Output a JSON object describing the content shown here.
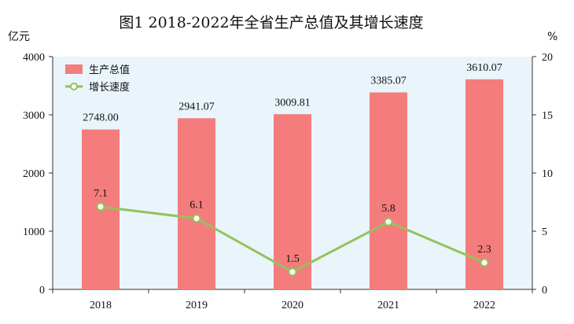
{
  "title": "图1  2018-2022年全省生产总值及其增长速度",
  "chart_data": {
    "type": "bar",
    "title": "图1  2018-2022年全省生产总值及其增长速度",
    "categories": [
      "2018",
      "2019",
      "2020",
      "2021",
      "2022"
    ],
    "series": [
      {
        "name": "生产总值",
        "type": "bar",
        "axis": "left",
        "values": [
          2748.0,
          2941.07,
          3009.81,
          3385.07,
          3610.07
        ],
        "labels": [
          "2748.00",
          "2941.07",
          "3009.81",
          "3385.07",
          "3610.07"
        ],
        "color": "#f47c7c"
      },
      {
        "name": "增长速度",
        "type": "line",
        "axis": "right",
        "values": [
          7.1,
          6.1,
          1.5,
          5.8,
          2.3
        ],
        "labels": [
          "7.1",
          "6.1",
          "1.5",
          "5.8",
          "2.3"
        ],
        "color": "#92c35c"
      }
    ],
    "ylabel_left": "亿元",
    "ylabel_right": "%",
    "ylim_left": [
      0,
      4000
    ],
    "yticks_left": [
      "0",
      "1000",
      "2000",
      "3000",
      "4000"
    ],
    "ylim_right": [
      0,
      20
    ],
    "yticks_right": [
      "0",
      "5",
      "10",
      "15",
      "20"
    ],
    "legend": "top-left",
    "grid": false,
    "background": "#eaf4fb"
  }
}
